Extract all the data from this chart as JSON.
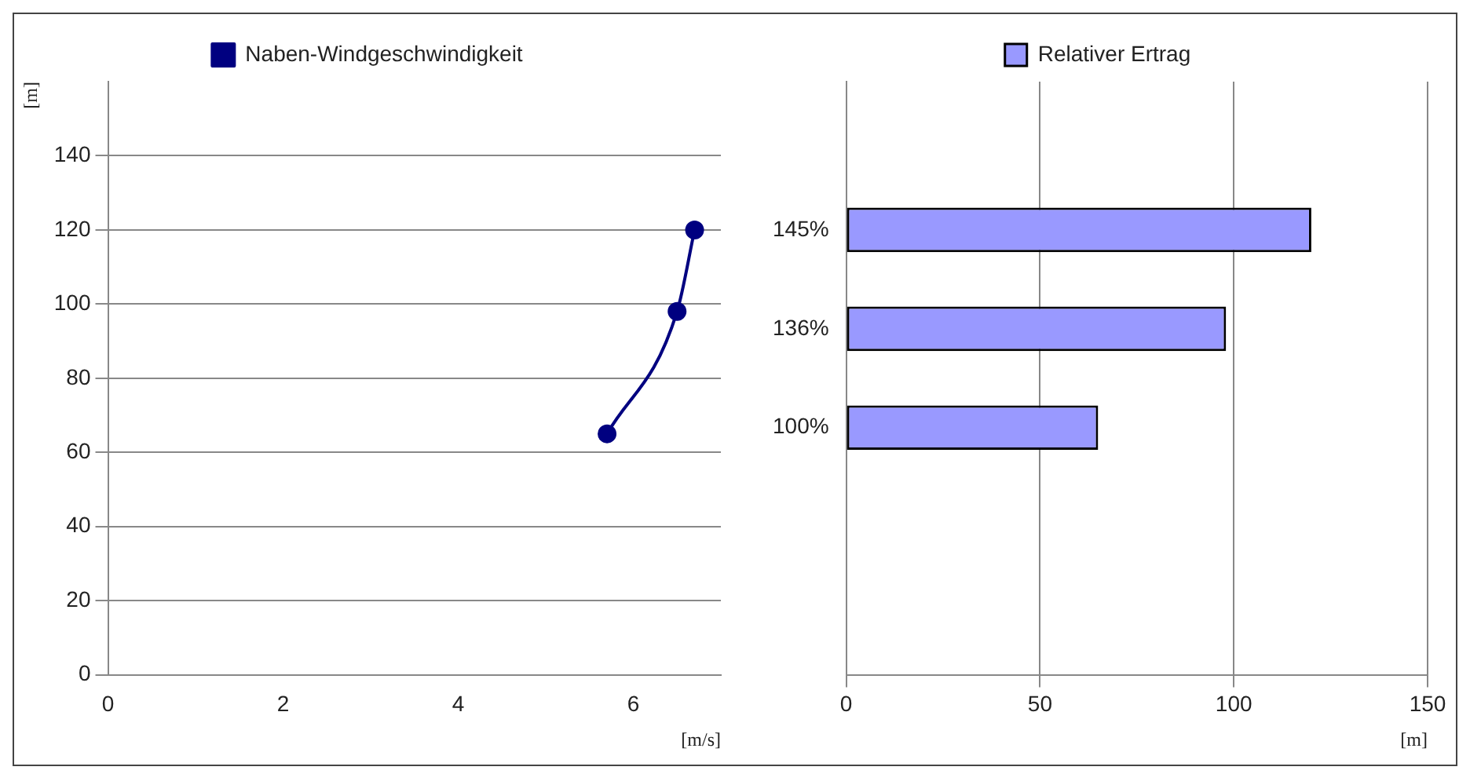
{
  "chart_data": [
    {
      "type": "line",
      "x": [
        5.7,
        6.5,
        6.7
      ],
      "series": [
        {
          "name": "Naben-Windgeschwindigkeit",
          "color": "#000080",
          "values": [
            65,
            98,
            120
          ]
        }
      ],
      "xlabel": "[m/s]",
      "ylabel": "[m]",
      "xlim": [
        0,
        7
      ],
      "xticks": [
        0,
        2,
        4,
        6
      ],
      "ylim": [
        0,
        160
      ],
      "yticks": [
        0,
        20,
        40,
        60,
        80,
        100,
        120,
        140
      ],
      "grid": "y",
      "legend": "top",
      "marker": "circle",
      "line_style": "solid"
    },
    {
      "type": "bar",
      "orientation": "horizontal",
      "categories": [
        null,
        "145%",
        "136%",
        "100%",
        null,
        null
      ],
      "series": [
        {
          "name": "Relativer Ertrag",
          "color": "#9999ff",
          "values": [
            null,
            120,
            98,
            65,
            null,
            null
          ]
        }
      ],
      "xlabel": "[m]",
      "xlim": [
        0,
        150
      ],
      "xticks": [
        0,
        50,
        100,
        150
      ],
      "grid": "x",
      "legend": "top"
    }
  ]
}
